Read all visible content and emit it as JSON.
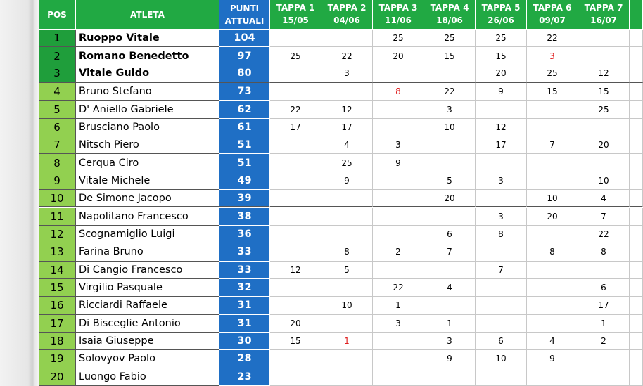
{
  "table": {
    "headers": [
      {
        "line1": "POS"
      },
      {
        "line1": "ATLETA"
      },
      {
        "line1": "PUNTI",
        "line2": "ATTUALI"
      },
      {
        "line1": "TAPPA 1",
        "line2": "15/05"
      },
      {
        "line1": "TAPPA 2",
        "line2": "04/06"
      },
      {
        "line1": "TAPPA 3",
        "line2": "11/06"
      },
      {
        "line1": "TAPPA 4",
        "line2": "18/06"
      },
      {
        "line1": "TAPPA 5",
        "line2": "26/06"
      },
      {
        "line1": "TAPPA 6",
        "line2": "09/07"
      },
      {
        "line1": "TAPPA 7",
        "line2": "16/07"
      }
    ],
    "discard_color": "#e02020",
    "rows": [
      {
        "pos": 1,
        "athlete": "Ruoppo Vitale",
        "points": 104,
        "stages": [
          null,
          null,
          25,
          25,
          25,
          22,
          null
        ]
      },
      {
        "pos": 2,
        "athlete": "Romano Benedetto",
        "points": 97,
        "stages": [
          25,
          22,
          20,
          15,
          15,
          {
            "value": 3,
            "discarded": true
          },
          null
        ]
      },
      {
        "pos": 3,
        "athlete": "Vitale Guido",
        "points": 80,
        "stages": [
          null,
          3,
          null,
          null,
          20,
          25,
          12
        ]
      },
      {
        "pos": 4,
        "athlete": "Bruno Stefano",
        "points": 73,
        "stages": [
          null,
          null,
          {
            "value": 8,
            "discarded": true
          },
          22,
          9,
          15,
          15
        ]
      },
      {
        "pos": 5,
        "athlete": "D' Aniello Gabriele",
        "points": 62,
        "stages": [
          22,
          12,
          null,
          3,
          null,
          null,
          25
        ]
      },
      {
        "pos": 6,
        "athlete": "Brusciano Paolo",
        "points": 61,
        "stages": [
          17,
          17,
          null,
          10,
          12,
          null,
          null
        ]
      },
      {
        "pos": 7,
        "athlete": "Nitsch Piero",
        "points": 51,
        "stages": [
          null,
          4,
          3,
          null,
          17,
          7,
          20
        ]
      },
      {
        "pos": 8,
        "athlete": "Cerqua Ciro",
        "points": 51,
        "stages": [
          null,
          25,
          9,
          null,
          null,
          null,
          null
        ]
      },
      {
        "pos": 9,
        "athlete": "Vitale Michele",
        "points": 49,
        "stages": [
          null,
          9,
          null,
          5,
          3,
          null,
          10
        ]
      },
      {
        "pos": 10,
        "athlete": "De Simone Jacopo",
        "points": 39,
        "stages": [
          null,
          null,
          null,
          20,
          null,
          10,
          4
        ]
      },
      {
        "pos": 11,
        "athlete": "Napolitano Francesco",
        "points": 38,
        "stages": [
          null,
          null,
          null,
          null,
          3,
          20,
          7
        ]
      },
      {
        "pos": 12,
        "athlete": "Scognamiglio Luigi",
        "points": 36,
        "stages": [
          null,
          null,
          null,
          6,
          8,
          null,
          22
        ]
      },
      {
        "pos": 13,
        "athlete": "Farina Bruno",
        "points": 33,
        "stages": [
          null,
          8,
          2,
          7,
          null,
          8,
          8
        ]
      },
      {
        "pos": 14,
        "athlete": "Di Cangio Francesco",
        "points": 33,
        "stages": [
          12,
          5,
          null,
          null,
          7,
          null,
          null
        ]
      },
      {
        "pos": 15,
        "athlete": "Virgilio Pasquale",
        "points": 32,
        "stages": [
          null,
          null,
          22,
          4,
          null,
          null,
          6
        ]
      },
      {
        "pos": 16,
        "athlete": "Ricciardi Raffaele",
        "points": 31,
        "stages": [
          null,
          10,
          1,
          null,
          null,
          null,
          17
        ]
      },
      {
        "pos": 17,
        "athlete": "Di Bisceglie Antonio",
        "points": 31,
        "stages": [
          20,
          null,
          3,
          1,
          null,
          null,
          1
        ]
      },
      {
        "pos": 18,
        "athlete": "Isaia Giuseppe",
        "points": 30,
        "stages": [
          15,
          {
            "value": 1,
            "discarded": true
          },
          null,
          3,
          6,
          4,
          2
        ]
      },
      {
        "pos": 19,
        "athlete": "Solovyov Paolo",
        "points": 28,
        "stages": [
          null,
          null,
          null,
          9,
          10,
          9,
          null
        ]
      },
      {
        "pos": 20,
        "athlete": "Luongo Fabio",
        "points": 23,
        "stages": [
          null,
          null,
          null,
          null,
          null,
          null,
          null
        ]
      }
    ]
  }
}
